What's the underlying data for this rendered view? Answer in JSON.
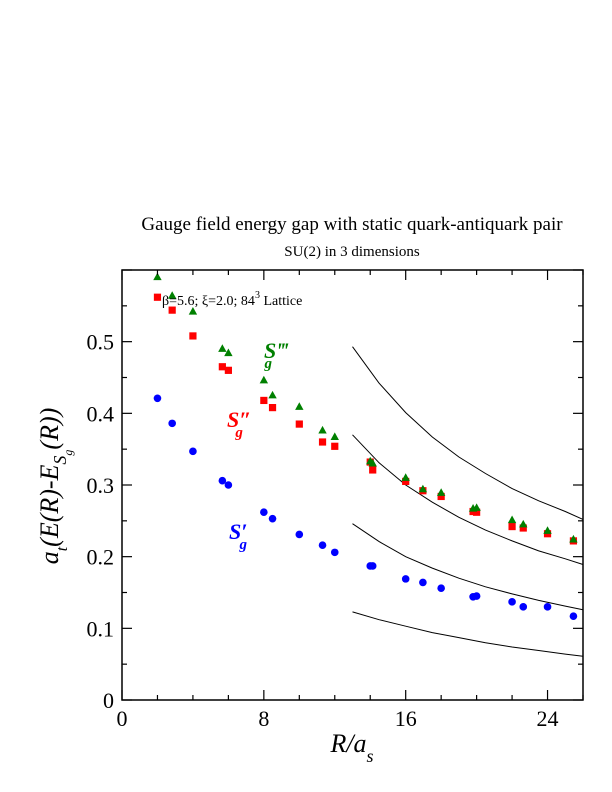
{
  "chart_data": {
    "type": "scatter",
    "title": "Gauge field energy gap with static quark-antiquark pair",
    "subtitle": "SU(2) in 3 dimensions",
    "annotation": {
      "text": "β=5.6; ξ=2.0; 84",
      "superscript": "3",
      "suffix": " Lattice"
    },
    "xlabel": {
      "main": "R/a",
      "sub": "s"
    },
    "ylabel": {
      "pre": "a",
      "pre_sub": "t",
      "mid": "(E(R)-E",
      "s": "S",
      "s_sub": "g",
      "post": "(R))"
    },
    "xlim": [
      0,
      26
    ],
    "ylim": [
      0,
      0.6
    ],
    "xticks": [
      0,
      8,
      16,
      24
    ],
    "xtick_labels": [
      "0",
      "8",
      "16",
      "24"
    ],
    "yticks": [
      0,
      0.1,
      0.2,
      0.3,
      0.4,
      0.5
    ],
    "ytick_labels": [
      "0",
      "0.1",
      "0.2",
      "0.3",
      "0.4",
      "0.5"
    ],
    "series": [
      {
        "name": "S′g",
        "label": {
          "base": "S",
          "prime": "′",
          "sub": "g"
        },
        "color": "#0000ff",
        "marker": "circle",
        "x": [
          2,
          2.83,
          4,
          5.66,
          6,
          8,
          8.49,
          10,
          11.31,
          12,
          14,
          14.14,
          16,
          16.97,
          18,
          19.8,
          20,
          22,
          22.63,
          24,
          25.46
        ],
        "y": [
          0.421,
          0.386,
          0.347,
          0.306,
          0.3,
          0.262,
          0.253,
          0.231,
          0.216,
          0.206,
          0.187,
          0.187,
          0.169,
          0.164,
          0.156,
          0.144,
          0.145,
          0.137,
          0.13,
          0.13,
          0.117
        ]
      },
      {
        "name": "S″g",
        "label": {
          "base": "S",
          "prime": "″",
          "sub": "g"
        },
        "color": "#ff0000",
        "marker": "square",
        "x": [
          2,
          2.83,
          4,
          5.66,
          6,
          8,
          8.49,
          10,
          11.31,
          12,
          14,
          14.14,
          16,
          16.97,
          18,
          19.8,
          20,
          22,
          22.63,
          24,
          25.46
        ],
        "y": [
          0.562,
          0.544,
          0.508,
          0.465,
          0.46,
          0.418,
          0.408,
          0.385,
          0.36,
          0.354,
          0.332,
          0.321,
          0.305,
          0.292,
          0.284,
          0.263,
          0.262,
          0.242,
          0.24,
          0.232,
          0.222
        ]
      },
      {
        "name": "S‴g",
        "label": {
          "base": "S",
          "prime": "‴",
          "sub": "g"
        },
        "color": "#008000",
        "marker": "triangle",
        "x": [
          2,
          2.83,
          4,
          5.66,
          6,
          8,
          8.49,
          10,
          11.31,
          12,
          14,
          14.14,
          16,
          16.97,
          18,
          19.8,
          20,
          22,
          22.63,
          24,
          25.46
        ],
        "y": [
          0.59,
          0.564,
          0.542,
          0.49,
          0.484,
          0.446,
          0.425,
          0.409,
          0.376,
          0.367,
          0.333,
          0.33,
          0.31,
          0.294,
          0.289,
          0.267,
          0.268,
          0.251,
          0.245,
          0.236,
          0.224
        ]
      }
    ],
    "curves": [
      {
        "x": [
          13.0,
          14.5,
          16,
          17.5,
          19,
          20.5,
          22,
          23.5,
          25,
          26
        ],
        "y": [
          0.123,
          0.112,
          0.103,
          0.094,
          0.087,
          0.08,
          0.074,
          0.069,
          0.064,
          0.061
        ]
      },
      {
        "x": [
          13.0,
          14.5,
          16,
          17.5,
          19,
          20.5,
          22,
          23.5,
          25,
          26
        ],
        "y": [
          0.246,
          0.221,
          0.2,
          0.184,
          0.17,
          0.158,
          0.148,
          0.139,
          0.131,
          0.126
        ]
      },
      {
        "x": [
          13.0,
          14.5,
          16,
          17.5,
          19,
          20.5,
          22,
          23.5,
          25,
          26
        ],
        "y": [
          0.37,
          0.331,
          0.3,
          0.276,
          0.255,
          0.237,
          0.222,
          0.208,
          0.197,
          0.189
        ]
      },
      {
        "x": [
          13.0,
          14.5,
          16,
          17.5,
          19,
          20.5,
          22,
          23.5,
          25,
          26
        ],
        "y": [
          0.493,
          0.442,
          0.401,
          0.367,
          0.339,
          0.316,
          0.295,
          0.278,
          0.263,
          0.252
        ]
      }
    ],
    "grid": false,
    "legend": "none"
  }
}
